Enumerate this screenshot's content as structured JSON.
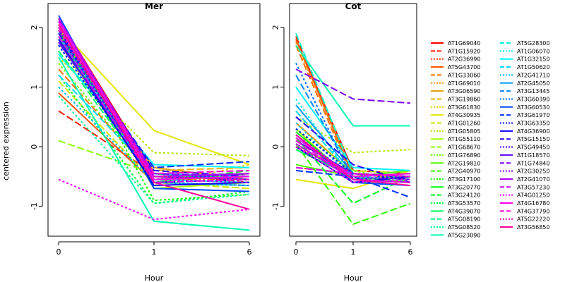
{
  "chart_data": {
    "type": "line",
    "ylabel": "centered expression",
    "xlabel": "Hour",
    "x": [
      "0",
      "1",
      "6"
    ],
    "ylim": [
      -1.5,
      2.4
    ],
    "yticks": [
      -1,
      0,
      1,
      2
    ],
    "grid": false,
    "legend_position": "right",
    "series_names": [
      "AT1G69040",
      "AT1G15920",
      "AT2G36990",
      "AT5G43700",
      "AT1G33060",
      "AT1G69010",
      "AT3G06590",
      "AT3G19860",
      "AT3G61830",
      "AT4G30935",
      "AT1G01260",
      "AT1G05805",
      "AT1G55110",
      "AT1G68670",
      "AT1G76890",
      "AT2G19810",
      "AT2G40970",
      "AT3G17100",
      "AT3G20770",
      "AT3G24120",
      "AT3G53570",
      "AT4G39070",
      "AT5G08190",
      "AT5G08520",
      "AT5G23090",
      "AT5G28300",
      "AT1G06070",
      "AT1G32150",
      "AT1G50620",
      "AT2G41710",
      "AT2G45050",
      "AT3G13445",
      "AT3G60390",
      "AT3G60530",
      "AT3G61970",
      "AT3G63350",
      "AT4G36900",
      "AT5G15150",
      "AT5G49450",
      "AT1G18570",
      "AT1G74840",
      "AT2G30250",
      "AT2G41070",
      "AT3G57230",
      "AT4G01250",
      "AT4G16780",
      "AT4G37790",
      "AT5G22220",
      "AT3G56850"
    ],
    "panels": [
      {
        "title": "Mer",
        "values": [
          [
            2.15,
            -0.45,
            -0.5
          ],
          [
            0.6,
            -0.45,
            -0.6
          ],
          [
            2.0,
            -0.55,
            -0.55
          ],
          [
            0.9,
            -0.6,
            -0.45
          ],
          [
            1.3,
            -0.5,
            -0.5
          ],
          [
            2.05,
            -0.5,
            -0.6
          ],
          [
            1.8,
            -0.35,
            -0.55
          ],
          [
            1.85,
            -0.4,
            -0.35
          ],
          [
            1.75,
            -0.65,
            -0.3
          ],
          [
            2.0,
            0.27,
            -0.3
          ],
          [
            1.1,
            -0.6,
            -0.7
          ],
          [
            1.5,
            -0.1,
            -0.15
          ],
          [
            2.0,
            -0.7,
            -0.6
          ],
          [
            0.1,
            -0.45,
            -0.5
          ],
          [
            1.4,
            -0.55,
            -0.5
          ],
          [
            1.9,
            -0.5,
            -0.5
          ],
          [
            1.6,
            -0.45,
            -0.55
          ],
          [
            2.0,
            -0.9,
            -0.8
          ],
          [
            1.95,
            -0.55,
            -0.45
          ],
          [
            1.85,
            -0.6,
            -0.4
          ],
          [
            1.2,
            -0.95,
            -0.75
          ],
          [
            1.8,
            -0.55,
            -0.5
          ],
          [
            1.6,
            -0.6,
            -0.65
          ],
          [
            0.85,
            -0.95,
            -0.8
          ],
          [
            1.5,
            -1.25,
            -1.4
          ],
          [
            2.05,
            -0.5,
            -0.55
          ],
          [
            1.7,
            -0.55,
            -0.6
          ],
          [
            1.55,
            -0.3,
            -0.35
          ],
          [
            1.2,
            -0.45,
            -0.5
          ],
          [
            1.0,
            -0.6,
            -0.65
          ],
          [
            1.85,
            -0.5,
            -0.45
          ],
          [
            1.9,
            -0.45,
            -0.55
          ],
          [
            2.1,
            -0.6,
            -0.65
          ],
          [
            2.2,
            -0.7,
            -0.75
          ],
          [
            1.9,
            -0.35,
            -0.25
          ],
          [
            1.7,
            -0.6,
            -0.55
          ],
          [
            1.8,
            -0.65,
            -0.6
          ],
          [
            1.95,
            -0.4,
            -0.5
          ],
          [
            1.9,
            -0.55,
            -0.45
          ],
          [
            1.75,
            -0.5,
            -0.55
          ],
          [
            2.1,
            -0.45,
            -0.5
          ],
          [
            2.0,
            -0.55,
            -0.6
          ],
          [
            2.15,
            -0.5,
            -0.45
          ],
          [
            1.85,
            -0.6,
            -0.55
          ],
          [
            -0.55,
            -1.22,
            -1.05
          ],
          [
            2.1,
            -0.55,
            -0.5
          ],
          [
            2.0,
            -0.45,
            -0.4
          ],
          [
            1.95,
            -0.5,
            -0.55
          ],
          [
            2.05,
            -0.6,
            -1.05
          ]
        ]
      },
      {
        "title": "Cot",
        "values": [
          [
            1.8,
            -0.4,
            -0.45
          ],
          [
            1.85,
            -0.5,
            -0.6
          ],
          [
            -0.35,
            -0.45,
            -0.55
          ],
          [
            1.8,
            -0.5,
            -0.4
          ],
          [
            1.7,
            -0.55,
            -0.5
          ],
          [
            1.75,
            -0.45,
            -0.5
          ],
          [
            0.4,
            -0.45,
            -0.55
          ],
          [
            0.6,
            -0.5,
            -0.6
          ],
          [
            0.2,
            -0.55,
            -0.5
          ],
          [
            -0.55,
            -0.7,
            -0.4
          ],
          [
            0.0,
            -0.4,
            -0.45
          ],
          [
            0.5,
            -0.1,
            -0.05
          ],
          [
            0.3,
            -0.6,
            -0.55
          ],
          [
            0.1,
            -0.45,
            -0.5
          ],
          [
            0.3,
            -0.4,
            -0.6
          ],
          [
            -0.3,
            -0.5,
            -0.4
          ],
          [
            0.05,
            -1.3,
            -0.95
          ],
          [
            0.0,
            -0.5,
            -0.45
          ],
          [
            0.25,
            -0.55,
            -0.6
          ],
          [
            0.15,
            -0.95,
            -0.5
          ],
          [
            0.3,
            -0.45,
            -0.55
          ],
          [
            -0.05,
            -0.5,
            -0.6
          ],
          [
            0.1,
            -0.55,
            -0.5
          ],
          [
            0.0,
            -0.6,
            -0.55
          ],
          [
            1.7,
            0.35,
            0.35
          ],
          [
            1.9,
            -0.45,
            -0.5
          ],
          [
            0.8,
            -0.55,
            -0.6
          ],
          [
            1.0,
            -0.35,
            -0.4
          ],
          [
            0.6,
            -0.5,
            -0.55
          ],
          [
            0.4,
            -0.55,
            -0.6
          ],
          [
            0.7,
            -0.45,
            -0.5
          ],
          [
            1.2,
            -0.5,
            -0.45
          ],
          [
            1.4,
            -0.55,
            -0.6
          ],
          [
            0.2,
            -0.6,
            -0.65
          ],
          [
            -0.4,
            -0.5,
            -0.85
          ],
          [
            0.3,
            -0.45,
            -0.55
          ],
          [
            0.0,
            -0.6,
            -0.5
          ],
          [
            0.5,
            -0.3,
            -0.6
          ],
          [
            0.2,
            -0.55,
            -0.5
          ],
          [
            0.1,
            -0.45,
            -0.5
          ],
          [
            1.3,
            0.8,
            0.73
          ],
          [
            0.2,
            -0.5,
            -0.55
          ],
          [
            0.05,
            -0.55,
            -0.6
          ],
          [
            -0.35,
            -0.45,
            -0.5
          ],
          [
            0.0,
            -0.6,
            -0.55
          ],
          [
            0.15,
            -0.5,
            -0.45
          ],
          [
            0.1,
            -0.55,
            -0.6
          ],
          [
            0.0,
            -0.45,
            -0.5
          ],
          [
            0.2,
            -0.55,
            -0.65
          ]
        ]
      }
    ]
  }
}
